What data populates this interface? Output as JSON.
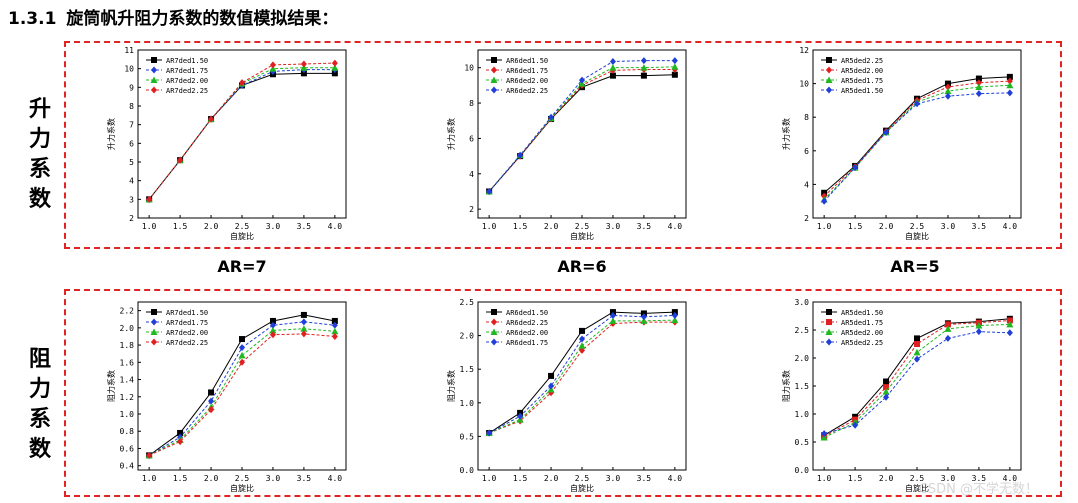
{
  "header": {
    "number": "1.3.1",
    "title": "旋筒帆升阻力系数的数值模拟结果："
  },
  "rows": {
    "lift_label": [
      "升",
      "力",
      "系",
      "数"
    ],
    "drag_label": [
      "阻",
      "力",
      "系",
      "数"
    ]
  },
  "ar_labels": [
    "AR=7",
    "AR=6",
    "AR=5"
  ],
  "watermark": "CSDN @不学无数！",
  "chart_data": [
    {
      "type": "line",
      "xlabel": "自旋比",
      "ylabel": "升力系数",
      "x": [
        1.0,
        1.5,
        2.0,
        2.5,
        3.0,
        3.5,
        4.0
      ],
      "xticks": [
        "1.0",
        "1.5",
        "2.0",
        "2.5",
        "3.0",
        "3.5",
        "4.0"
      ],
      "ylim": [
        2,
        11
      ],
      "yticks": [
        2,
        3,
        4,
        5,
        6,
        7,
        8,
        9,
        10,
        11
      ],
      "legend": "top-left",
      "series": [
        {
          "name": "AR7ded1.50",
          "color": "#000000",
          "marker": "square",
          "values": [
            3.0,
            5.1,
            7.3,
            9.1,
            9.7,
            9.75,
            9.75
          ]
        },
        {
          "name": "AR7ded1.75",
          "color": "#1f3fd8",
          "marker": "diamond",
          "values": [
            3.0,
            5.1,
            7.3,
            9.1,
            9.85,
            9.95,
            9.95
          ]
        },
        {
          "name": "AR7ded2.00",
          "color": "#1fb81f",
          "marker": "triangle",
          "values": [
            3.0,
            5.1,
            7.3,
            9.2,
            10.0,
            10.05,
            10.05
          ]
        },
        {
          "name": "AR7ded2.25",
          "color": "#e02020",
          "marker": "diamond",
          "values": [
            3.0,
            5.1,
            7.3,
            9.25,
            10.2,
            10.25,
            10.3
          ]
        }
      ]
    },
    {
      "type": "line",
      "xlabel": "自旋比",
      "ylabel": "升力系数",
      "x": [
        1.0,
        1.5,
        2.0,
        2.5,
        3.0,
        3.5,
        4.0
      ],
      "xticks": [
        "1.0",
        "1.5",
        "2.0",
        "2.5",
        "3.0",
        "3.5",
        "4.0"
      ],
      "ylim": [
        1.5,
        11
      ],
      "yticks": [
        2,
        4,
        6,
        8,
        10
      ],
      "legend": "top-left",
      "series": [
        {
          "name": "AR6ded1.50",
          "color": "#000000",
          "marker": "square",
          "values": [
            3.0,
            5.0,
            7.1,
            8.9,
            9.55,
            9.55,
            9.6
          ]
        },
        {
          "name": "AR6ded1.75",
          "color": "#e02020",
          "marker": "diamond",
          "values": [
            3.0,
            5.0,
            7.1,
            9.0,
            9.85,
            9.9,
            9.9
          ]
        },
        {
          "name": "AR6ded2.00",
          "color": "#1fb81f",
          "marker": "triangle",
          "values": [
            3.0,
            5.05,
            7.15,
            9.1,
            10.0,
            10.0,
            10.05
          ]
        },
        {
          "name": "AR6ded2.25",
          "color": "#1f3fd8",
          "marker": "diamond",
          "values": [
            3.0,
            5.05,
            7.2,
            9.3,
            10.35,
            10.4,
            10.4
          ]
        }
      ]
    },
    {
      "type": "line",
      "xlabel": "自旋比",
      "ylabel": "升力系数",
      "x": [
        1.0,
        1.5,
        2.0,
        2.5,
        3.0,
        3.5,
        4.0
      ],
      "xticks": [
        "1.0",
        "1.5",
        "2.0",
        "2.5",
        "3.0",
        "3.5",
        "4.0"
      ],
      "ylim": [
        2,
        12
      ],
      "yticks": [
        2,
        4,
        6,
        8,
        10,
        12
      ],
      "legend": "top-left",
      "series": [
        {
          "name": "AR5ded2.25",
          "color": "#000000",
          "marker": "square",
          "values": [
            3.5,
            5.1,
            7.2,
            9.1,
            10.0,
            10.3,
            10.4
          ]
        },
        {
          "name": "AR5ded2.00",
          "color": "#e02020",
          "marker": "diamond",
          "values": [
            3.3,
            5.05,
            7.15,
            9.0,
            9.8,
            10.05,
            10.15
          ]
        },
        {
          "name": "AR5ded1.75",
          "color": "#1fb81f",
          "marker": "triangle",
          "values": [
            3.1,
            5.0,
            7.1,
            8.9,
            9.55,
            9.8,
            9.9
          ]
        },
        {
          "name": "AR5ded1.50",
          "color": "#1f3fd8",
          "marker": "diamond",
          "values": [
            3.0,
            5.0,
            7.1,
            8.8,
            9.25,
            9.4,
            9.45
          ]
        }
      ]
    },
    {
      "type": "line",
      "xlabel": "自旋比",
      "ylabel": "阻力系数",
      "x": [
        1.0,
        1.5,
        2.0,
        2.5,
        3.0,
        3.5,
        4.0
      ],
      "xticks": [
        "1.0",
        "1.5",
        "2.0",
        "2.5",
        "3.0",
        "3.5",
        "4.0"
      ],
      "ylim": [
        0.35,
        2.3
      ],
      "yticks": [
        0.4,
        0.6,
        0.8,
        1.0,
        1.2,
        1.4,
        1.6,
        1.8,
        2.0,
        2.2
      ],
      "legend": "top-left",
      "series": [
        {
          "name": "AR7ded1.50",
          "color": "#000000",
          "marker": "square",
          "values": [
            0.52,
            0.78,
            1.25,
            1.87,
            2.08,
            2.15,
            2.08
          ]
        },
        {
          "name": "AR7ded1.75",
          "color": "#1f3fd8",
          "marker": "diamond",
          "values": [
            0.52,
            0.73,
            1.15,
            1.77,
            2.03,
            2.07,
            2.03
          ]
        },
        {
          "name": "AR7ded2.00",
          "color": "#1fb81f",
          "marker": "triangle",
          "values": [
            0.52,
            0.7,
            1.08,
            1.68,
            1.97,
            1.99,
            1.96
          ]
        },
        {
          "name": "AR7ded2.25",
          "color": "#e02020",
          "marker": "diamond",
          "values": [
            0.52,
            0.68,
            1.05,
            1.6,
            1.92,
            1.93,
            1.9
          ]
        }
      ]
    },
    {
      "type": "line",
      "xlabel": "自旋比",
      "ylabel": "阻力系数",
      "x": [
        1.0,
        1.5,
        2.0,
        2.5,
        3.0,
        3.5,
        4.0
      ],
      "xticks": [
        "1.0",
        "1.5",
        "2.0",
        "2.5",
        "3.0",
        "3.5",
        "4.0"
      ],
      "ylim": [
        0,
        2.5
      ],
      "yticks": [
        0.0,
        0.5,
        1.0,
        1.5,
        2.0,
        2.5
      ],
      "legend": "top-left",
      "series": [
        {
          "name": "AR6ded1.50",
          "color": "#000000",
          "marker": "square",
          "values": [
            0.55,
            0.85,
            1.4,
            2.07,
            2.35,
            2.33,
            2.35
          ]
        },
        {
          "name": "AR6ded2.25",
          "color": "#e02020",
          "marker": "diamond",
          "values": [
            0.55,
            0.73,
            1.15,
            1.78,
            2.18,
            2.2,
            2.2
          ]
        },
        {
          "name": "AR6ded2.00",
          "color": "#1fb81f",
          "marker": "triangle",
          "values": [
            0.55,
            0.75,
            1.2,
            1.85,
            2.22,
            2.22,
            2.23
          ]
        },
        {
          "name": "AR6ded1.75",
          "color": "#1f3fd8",
          "marker": "diamond",
          "values": [
            0.55,
            0.8,
            1.25,
            1.95,
            2.3,
            2.28,
            2.3
          ]
        }
      ]
    },
    {
      "type": "line",
      "xlabel": "自旋比",
      "ylabel": "阻力系数",
      "x": [
        1.0,
        1.5,
        2.0,
        2.5,
        3.0,
        3.5,
        4.0
      ],
      "xticks": [
        "1.0",
        "1.5",
        "2.0",
        "2.5",
        "3.0",
        "3.5",
        "4.0"
      ],
      "ylim": [
        0,
        3.0
      ],
      "yticks": [
        0.0,
        0.5,
        1.0,
        1.5,
        2.0,
        2.5,
        3.0
      ],
      "legend": "top-left",
      "series": [
        {
          "name": "AR5ded1.50",
          "color": "#000000",
          "marker": "square",
          "values": [
            0.62,
            0.95,
            1.58,
            2.35,
            2.62,
            2.65,
            2.7
          ]
        },
        {
          "name": "AR5ded1.75",
          "color": "#e02020",
          "marker": "square",
          "values": [
            0.6,
            0.9,
            1.48,
            2.25,
            2.6,
            2.63,
            2.67
          ]
        },
        {
          "name": "AR5ded2.00",
          "color": "#1fb81f",
          "marker": "triangle",
          "values": [
            0.58,
            0.85,
            1.4,
            2.1,
            2.52,
            2.58,
            2.6
          ]
        },
        {
          "name": "AR5ded2.25",
          "color": "#1f3fd8",
          "marker": "diamond",
          "values": [
            0.65,
            0.8,
            1.3,
            1.98,
            2.35,
            2.47,
            2.45
          ]
        }
      ]
    }
  ]
}
